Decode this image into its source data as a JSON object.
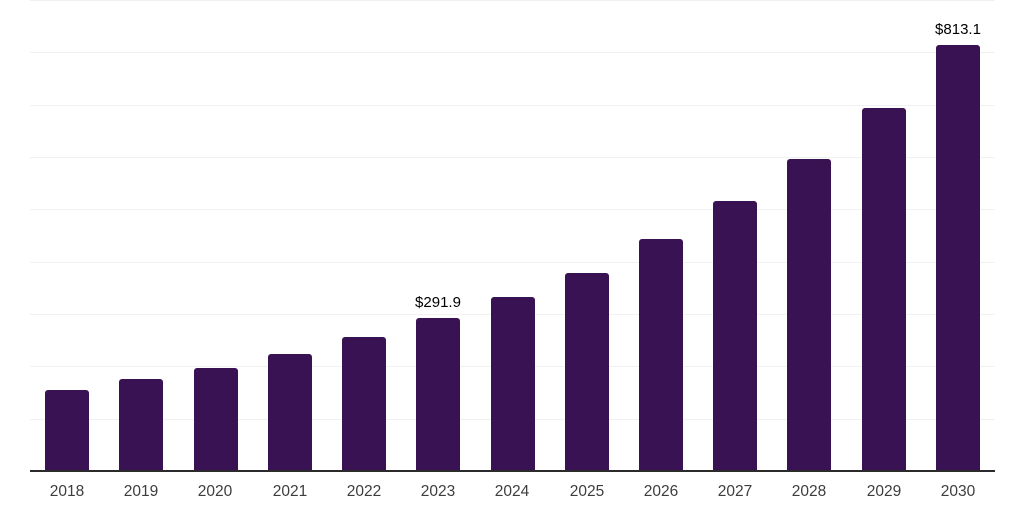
{
  "chart_data": {
    "type": "bar",
    "title": "",
    "xlabel": "",
    "ylabel": "",
    "categories": [
      "2018",
      "2019",
      "2020",
      "2021",
      "2022",
      "2023",
      "2024",
      "2025",
      "2026",
      "2027",
      "2028",
      "2029",
      "2030"
    ],
    "values": [
      154.6,
      176.1,
      196.0,
      223.8,
      255.1,
      291.9,
      332.5,
      379.0,
      443.9,
      515.6,
      596.4,
      692.9,
      813.1
    ],
    "data_labels": {
      "2023": "$291.9",
      "2030": "$813.1"
    },
    "ylim": [
      0,
      900
    ],
    "gridline_interval": 100,
    "grid": true,
    "legend": false,
    "colors": {
      "bar": "#381252",
      "gridline": "#f1f1f1",
      "axis_line": "#2b2b2b",
      "tick_label": "#3d3d3d",
      "data_label": "#000000",
      "background": "#ffffff"
    }
  }
}
